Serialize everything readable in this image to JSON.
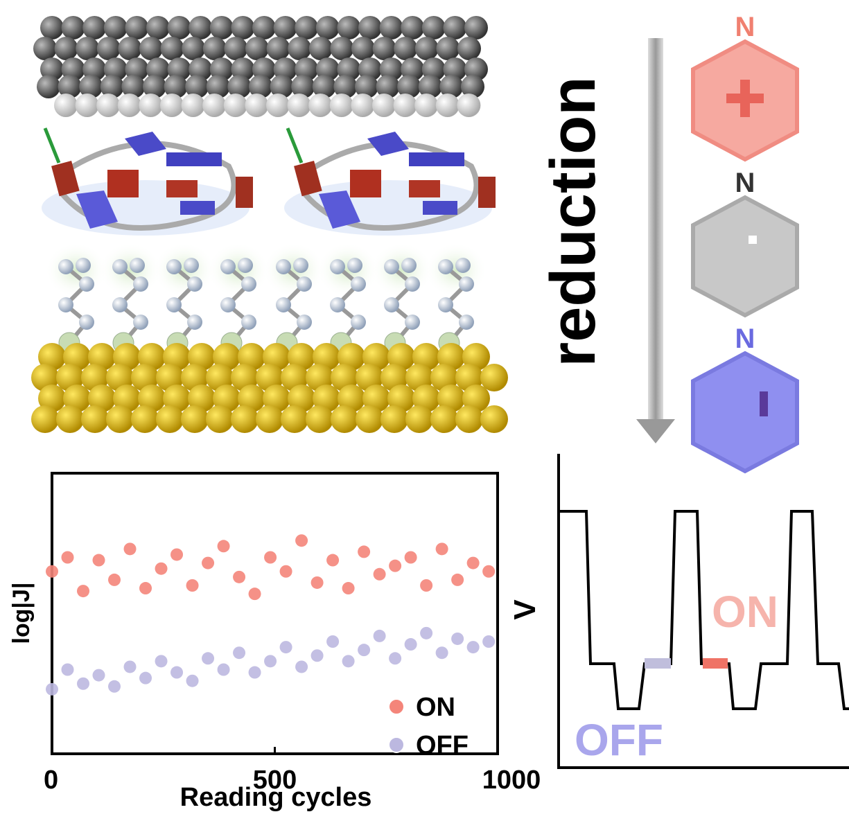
{
  "chart_data": {
    "type": "scatter",
    "xlabel": "Reading cycles",
    "ylabel": "log|J|",
    "xlim": [
      0,
      1000
    ],
    "xticks": [
      0,
      500,
      1000
    ],
    "ylim": [
      0,
      10
    ],
    "legend": "lower right",
    "series": [
      {
        "name": "ON",
        "color": "#f4857a",
        "x": [
          0,
          35,
          70,
          105,
          140,
          175,
          210,
          245,
          280,
          315,
          350,
          385,
          420,
          455,
          490,
          525,
          560,
          595,
          630,
          665,
          700,
          735,
          770,
          805,
          840,
          875,
          910,
          945,
          980
        ],
        "values": [
          6.5,
          7.0,
          5.8,
          6.9,
          6.2,
          7.3,
          5.9,
          6.6,
          7.1,
          6.0,
          6.8,
          7.4,
          6.3,
          5.7,
          7.0,
          6.5,
          7.6,
          6.1,
          6.9,
          5.9,
          7.2,
          6.4,
          6.7,
          7.0,
          6.0,
          7.3,
          6.2,
          6.8,
          6.5
        ]
      },
      {
        "name": "OFF",
        "color": "#bcb8e0",
        "x": [
          0,
          35,
          70,
          105,
          140,
          175,
          210,
          245,
          280,
          315,
          350,
          385,
          420,
          455,
          490,
          525,
          560,
          595,
          630,
          665,
          700,
          735,
          770,
          805,
          840,
          875,
          910,
          945,
          980
        ],
        "values": [
          2.3,
          3.0,
          2.5,
          2.8,
          2.4,
          3.1,
          2.7,
          3.3,
          2.9,
          2.6,
          3.4,
          3.0,
          3.6,
          2.9,
          3.3,
          3.8,
          3.1,
          3.5,
          4.0,
          3.3,
          3.7,
          4.2,
          3.4,
          3.9,
          4.3,
          3.6,
          4.1,
          3.8,
          4.0
        ]
      }
    ]
  },
  "diagram": {
    "arrow_label": "reduction",
    "molecule_labels": [
      "N",
      "N",
      "N"
    ],
    "energy_axis_label": "V",
    "state_labels": [
      "ON",
      "OFF"
    ]
  }
}
